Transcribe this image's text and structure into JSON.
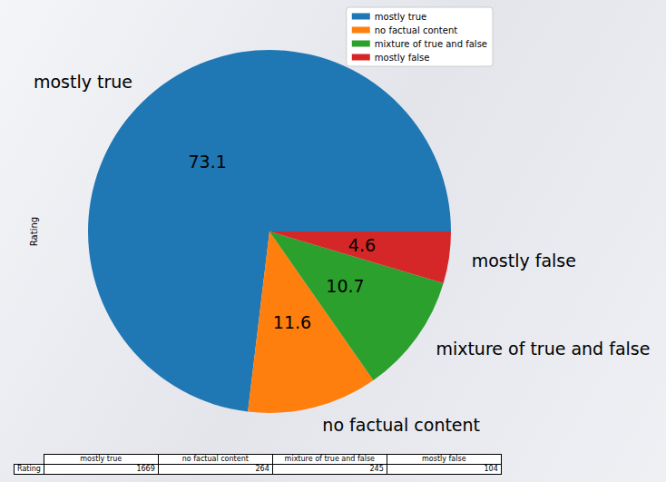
{
  "chart_data": {
    "type": "pie",
    "categories": [
      "mostly true",
      "no factual content",
      "mixture of true and false",
      "mostly false"
    ],
    "values": [
      73.1,
      11.6,
      10.7,
      4.6
    ],
    "colors": [
      "#1f77b4",
      "#ff7f0e",
      "#2ca02c",
      "#d62728"
    ],
    "data_labels": true,
    "legend": "upper right",
    "ylabel": "Rating",
    "table": {
      "row_label": "Rating",
      "columns": [
        "mostly true",
        "no factual content",
        "mixture of true and false",
        "mostly false"
      ],
      "values": [
        1669,
        264,
        245,
        104
      ]
    }
  }
}
